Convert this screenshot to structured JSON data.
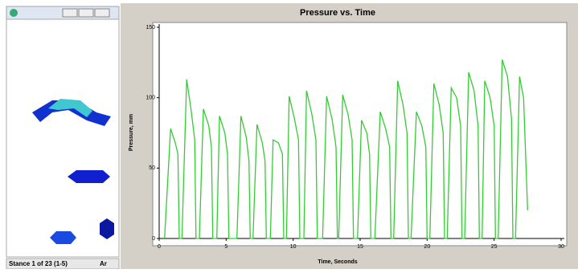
{
  "window": {
    "status": "Stance 1 of 23 (1-5)",
    "status_right": "Ar"
  },
  "chart_data": {
    "type": "line",
    "title": "Pressure vs. Time",
    "x_label": "Time, Seconds",
    "y_label": "Pressure, mm",
    "xlim": [
      0,
      30
    ],
    "xticks": [
      0,
      5,
      10,
      15,
      20,
      25,
      30
    ],
    "ylim": [
      0,
      150
    ],
    "yticks": [
      0,
      50,
      100,
      150
    ],
    "series": [
      {
        "color": "#33cc33",
        "x": [
          0.4,
          0.85,
          1.2,
          1.4,
          1.5,
          1.7,
          2.05,
          2.4,
          2.65,
          2.75,
          3.0,
          3.3,
          3.7,
          3.9,
          4.0,
          4.3,
          4.5,
          4.9,
          5.1,
          5.2,
          5.8,
          6.1,
          6.5,
          6.7,
          6.8,
          7.0,
          7.3,
          7.7,
          7.9,
          8.0,
          8.3,
          8.5,
          8.9,
          9.2,
          9.3,
          9.5,
          9.7,
          10.1,
          10.4,
          10.5,
          10.8,
          11.0,
          11.4,
          11.7,
          11.8,
          12.2,
          12.5,
          12.9,
          13.2,
          13.3,
          13.4,
          13.7,
          14.1,
          14.4,
          14.5,
          14.8,
          15.1,
          15.5,
          15.7,
          15.8,
          16.1,
          16.5,
          16.9,
          17.2,
          17.3,
          17.5,
          17.8,
          18.2,
          18.5,
          18.6,
          18.8,
          19.2,
          19.6,
          19.9,
          20.0,
          20.2,
          20.5,
          20.9,
          21.2,
          21.3,
          21.5,
          21.8,
          22.2,
          22.5,
          22.6,
          22.8,
          23.1,
          23.5,
          23.8,
          23.9,
          24.1,
          24.3,
          24.7,
          25.0,
          25.1,
          25.3,
          25.6,
          26.0,
          26.3,
          26.4,
          26.6,
          26.9,
          27.2,
          27.5
        ],
        "values": [
          0,
          78,
          68,
          60,
          0,
          0,
          113,
          90,
          70,
          0,
          0,
          92,
          80,
          65,
          0,
          0,
          87,
          75,
          60,
          0,
          0,
          87,
          72,
          55,
          0,
          0,
          81,
          68,
          55,
          0,
          0,
          70,
          68,
          60,
          0,
          0,
          101,
          85,
          70,
          0,
          0,
          105,
          88,
          70,
          0,
          0,
          101,
          85,
          65,
          0,
          0,
          102,
          88,
          70,
          0,
          0,
          84,
          75,
          60,
          0,
          0,
          90,
          78,
          65,
          0,
          0,
          112,
          95,
          75,
          0,
          0,
          90,
          80,
          65,
          0,
          0,
          110,
          95,
          75,
          0,
          0,
          107,
          100,
          80,
          0,
          0,
          118,
          105,
          80,
          0,
          0,
          112,
          100,
          80,
          0,
          0,
          127,
          115,
          85,
          0,
          0,
          115,
          100,
          20
        ]
      }
    ]
  }
}
